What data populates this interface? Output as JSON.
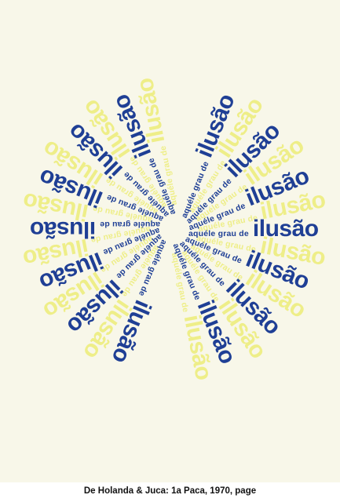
{
  "poem": {
    "phrase": "aquéle grau de",
    "word": "ilusão"
  },
  "colors": {
    "paper": "#f8f7e9",
    "blue": "#1f3f95",
    "yellow": "#eeee88"
  },
  "caption": "De Holanda & Juca: 1a Paca, 1970, page"
}
